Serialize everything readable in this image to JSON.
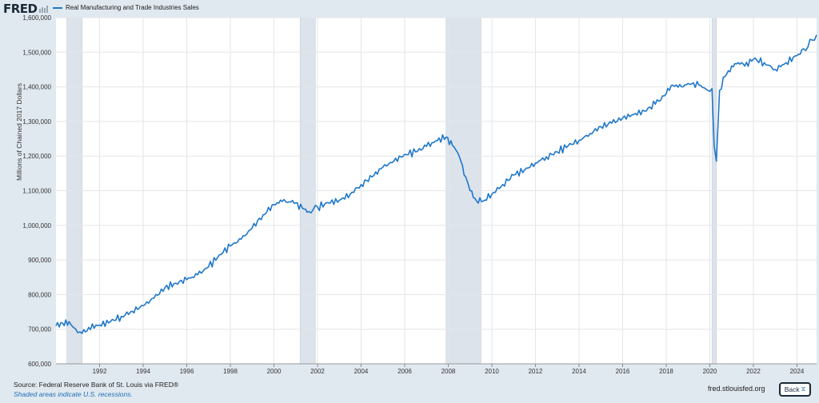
{
  "header": {
    "logo": "FRED",
    "legend_label": "Real Manufacturing and Trade Industries Sales"
  },
  "axis": {
    "ylabel": "Millions of Chained 2017 Dollars"
  },
  "footer": {
    "source": "Source: Federal Reserve Bank of St. Louis via FRED®",
    "note": "Shaded areas indicate U.S. recessions.",
    "site": "fred.stlouisfed.org",
    "back_label": "Back"
  },
  "colors": {
    "series": "#1f77c9",
    "recession": "#dde3eb",
    "background": "#e1e9f0",
    "plot": "#ffffff"
  },
  "chart_data": {
    "type": "line",
    "title": "",
    "xlabel": "",
    "ylabel": "Millions of Chained 2017 Dollars",
    "xlim": [
      1990.0,
      2024.9
    ],
    "ylim": [
      600000,
      1600000
    ],
    "yticks": [
      600000,
      700000,
      800000,
      900000,
      1000000,
      1100000,
      1200000,
      1300000,
      1400000,
      1500000,
      1600000
    ],
    "ytick_labels": [
      "600,000",
      "700,000",
      "800,000",
      "900,000",
      "1,000,000",
      "1,100,000",
      "1,200,000",
      "1,300,000",
      "1,400,000",
      "1,500,000",
      "1,600,000"
    ],
    "xticks": [
      1992,
      1994,
      1996,
      1998,
      2000,
      2002,
      2004,
      2006,
      2008,
      2010,
      2012,
      2014,
      2016,
      2018,
      2020,
      2022,
      2024
    ],
    "xtick_labels": [
      "1992",
      "1994",
      "1996",
      "1998",
      "2000",
      "2002",
      "2004",
      "2006",
      "2008",
      "2010",
      "2012",
      "2014",
      "2016",
      "2018",
      "2020",
      "2022",
      "2024"
    ],
    "grid": true,
    "legend": "top-left",
    "recessions": [
      [
        1990.5,
        1991.2
      ],
      [
        2001.2,
        2001.9
      ],
      [
        2007.9,
        2009.5
      ],
      [
        2020.1,
        2020.3
      ]
    ],
    "series": [
      {
        "name": "Real Manufacturing and Trade Industries Sales",
        "x": [
          1990.0,
          1990.3,
          1990.6,
          1990.8,
          1991.0,
          1991.2,
          1991.5,
          1992.0,
          1992.5,
          1993.0,
          1993.5,
          1994.0,
          1994.5,
          1995.0,
          1995.5,
          1996.0,
          1996.5,
          1997.0,
          1997.5,
          1998.0,
          1998.5,
          1999.0,
          1999.5,
          2000.0,
          2000.3,
          2000.7,
          2001.0,
          2001.3,
          2001.6,
          2001.8,
          2002.0,
          2002.5,
          2003.0,
          2003.5,
          2004.0,
          2004.5,
          2005.0,
          2005.5,
          2006.0,
          2006.5,
          2007.0,
          2007.5,
          2007.9,
          2008.2,
          2008.5,
          2008.8,
          2009.0,
          2009.3,
          2009.6,
          2010.0,
          2010.5,
          2011.0,
          2011.5,
          2012.0,
          2012.5,
          2013.0,
          2013.5,
          2014.0,
          2014.5,
          2015.0,
          2015.5,
          2016.0,
          2016.5,
          2017.0,
          2017.5,
          2018.0,
          2018.3,
          2018.7,
          2019.0,
          2019.5,
          2019.9,
          2020.1,
          2020.2,
          2020.3,
          2020.45,
          2020.7,
          2021.0,
          2021.3,
          2021.6,
          2022.0,
          2022.5,
          2023.0,
          2023.5,
          2024.0,
          2024.3,
          2024.5,
          2024.7,
          2024.9
        ],
        "values": [
          710000,
          718000,
          722000,
          705000,
          690000,
          688000,
          705000,
          712000,
          722000,
          737000,
          752000,
          768000,
          790000,
          820000,
          833000,
          843000,
          857000,
          880000,
          915000,
          940000,
          960000,
          992000,
          1030000,
          1060000,
          1073000,
          1068000,
          1065000,
          1050000,
          1040000,
          1045000,
          1053000,
          1065000,
          1072000,
          1090000,
          1118000,
          1140000,
          1168000,
          1185000,
          1205000,
          1212000,
          1228000,
          1245000,
          1255000,
          1230000,
          1200000,
          1140000,
          1100000,
          1070000,
          1070000,
          1090000,
          1118000,
          1145000,
          1160000,
          1180000,
          1198000,
          1212000,
          1230000,
          1245000,
          1265000,
          1285000,
          1295000,
          1310000,
          1320000,
          1330000,
          1350000,
          1380000,
          1405000,
          1400000,
          1410000,
          1405000,
          1390000,
          1395000,
          1230000,
          1185000,
          1390000,
          1430000,
          1460000,
          1470000,
          1460000,
          1480000,
          1470000,
          1450000,
          1470000,
          1490000,
          1510000,
          1515000,
          1535000,
          1550000
        ]
      }
    ]
  }
}
